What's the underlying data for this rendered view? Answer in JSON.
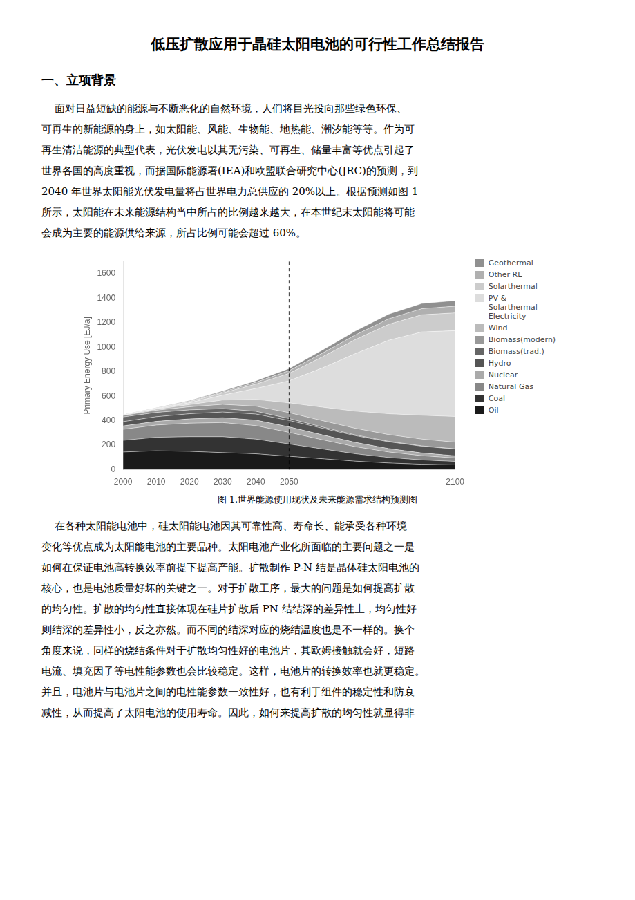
{
  "title": "低压扩散应用于晶硅太阳电池的可行性工作总结报告",
  "heading": "一、立项背景",
  "paragraphs_before": [
    "    面对日益短缺的能源与不断恶化的自然环境，人们将目光投向那些绿色环保、",
    "可再生的新能源的身上，如太阳能、风能、生物能、地热能、潮汐能等等。作为可",
    "再生清洁能源的典型代表，光伏发电以其无污染、可再生、储量丰富等优点引起了",
    "世界各国的高度重视，而据国际能源署(IEA)和欧盟联合研究中心(JRC)的预测，到",
    "2040 年世界太阳能光伏发电量将占世界电力总供应的 20%以上。根据预测如图 1",
    "所示，太阳能在未来能源结构当中所占的比例越来越大，在本世纪末太阳能将可能",
    "会成为主要的能源供给来源，所占比例可能会超过 60%。"
  ],
  "caption": "图 1.世界能源使用现状及未来能源需求结构预测图",
  "paragraphs_after": [
    "    在各种太阳能电池中，硅太阳能电池因其可靠性高、寿命长、能承受各种环境",
    "变化等优点成为太阳能电池的主要品种。太阳电池产业化所面临的主要问题之一是",
    "如何在保证电池高转换效率前提下提高产能。扩散制作 P-N 结是晶体硅太阳电池的",
    "核心，也是电池质量好坏的关键之一。对于扩散工序，最大的问题是如何提高扩散",
    "的均匀性。扩散的均匀性直接体现在硅片扩散后 PN 结结深的差异性上，均匀性好",
    "则结深的差异性小，反之亦然。而不同的结深对应的烧结温度也是不一样的。换个",
    "角度来说，同样的烧结条件对于扩散均匀性好的电池片，其欧姆接触就会好，短路",
    "电流、填充因子等电性能参数也会比较稳定。这样，电池片的转换效率也就更稳定。",
    "并且，电池片与电池片之间的电性能参数一致性好，也有利于组件的稳定性和防衰",
    "减性，从而提高了太阳电池的使用寿命。因此，如何来提高扩散的均匀性就显得非"
  ],
  "chart_data": {
    "type": "area",
    "stacked": true,
    "x": [
      2000,
      2010,
      2020,
      2030,
      2040,
      2050,
      2060,
      2070,
      2080,
      2090,
      2100
    ],
    "series": [
      {
        "name": "Oil",
        "color": "#1a1a1a",
        "values": [
          145,
          155,
          150,
          140,
          130,
          110,
          90,
          70,
          55,
          45,
          40
        ]
      },
      {
        "name": "Coal",
        "color": "#333333",
        "values": [
          95,
          110,
          120,
          130,
          120,
          100,
          80,
          60,
          45,
          35,
          28
        ]
      },
      {
        "name": "Natural Gas",
        "color": "#888888",
        "values": [
          90,
          100,
          110,
          115,
          110,
          95,
          75,
          58,
          45,
          35,
          28
        ]
      },
      {
        "name": "Nuclear",
        "color": "#aaaaaa",
        "values": [
          28,
          30,
          35,
          40,
          45,
          45,
          40,
          35,
          28,
          22,
          18
        ]
      },
      {
        "name": "Hydro",
        "color": "#555555",
        "values": [
          35,
          38,
          42,
          46,
          50,
          52,
          54,
          55,
          55,
          55,
          55
        ]
      },
      {
        "name": "Biomass(trad.)",
        "color": "#666666",
        "values": [
          38,
          35,
          32,
          28,
          22,
          16,
          10,
          6,
          4,
          3,
          2
        ]
      },
      {
        "name": "Biomass(modern)",
        "color": "#999999",
        "values": [
          12,
          18,
          25,
          35,
          42,
          48,
          52,
          54,
          55,
          55,
          54
        ]
      },
      {
        "name": "Wind",
        "color": "#bbbbbb",
        "values": [
          2,
          8,
          18,
          35,
          55,
          80,
          110,
          140,
          170,
          195,
          210
        ]
      },
      {
        "name": "PV &\nSolarthermal\nElectricity",
        "color": "#dddddd",
        "values": [
          1,
          5,
          15,
          40,
          90,
          180,
          320,
          470,
          600,
          680,
          700
        ]
      },
      {
        "name": "Solarthermal",
        "color": "#cccccc",
        "values": [
          1,
          3,
          8,
          18,
          35,
          60,
          90,
          115,
          130,
          140,
          145
        ]
      },
      {
        "name": "Other RE",
        "color": "#b0b0b0",
        "values": [
          1,
          2,
          4,
          8,
          15,
          22,
          30,
          38,
          45,
          50,
          55
        ]
      },
      {
        "name": "Geothermal",
        "color": "#909090",
        "values": [
          2,
          3,
          5,
          8,
          12,
          18,
          25,
          32,
          38,
          42,
          45
        ]
      }
    ],
    "xlim": [
      2000,
      2100
    ],
    "xticks": [
      2000,
      2010,
      2020,
      2030,
      2040,
      2050,
      2100
    ],
    "ylim": [
      0,
      1700
    ],
    "yticks": [
      0,
      200,
      400,
      600,
      800,
      1000,
      1200,
      1400,
      1600
    ],
    "y_label": "Primary Energy Use [EJ/a]",
    "reference_lines": [
      {
        "x": 2050,
        "line_style": "dashed"
      }
    ],
    "grid": false,
    "legend": "right"
  }
}
